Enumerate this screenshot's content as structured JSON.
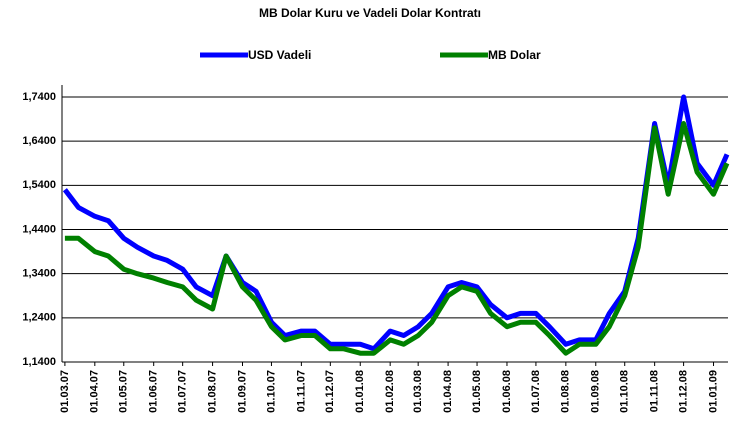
{
  "chart_data": {
    "type": "line",
    "title": "MB Dolar Kuru ve Vadeli Dolar Kontratı",
    "x": [
      "01.03.07",
      "15.03.07",
      "01.04.07",
      "15.04.07",
      "01.05.07",
      "15.05.07",
      "01.06.07",
      "15.06.07",
      "01.07.07",
      "15.07.07",
      "01.08.07",
      "15.08.07",
      "01.09.07",
      "15.09.07",
      "01.10.07",
      "15.10.07",
      "01.11.07",
      "15.11.07",
      "01.12.07",
      "15.12.07",
      "01.01.08",
      "15.01.08",
      "01.02.08",
      "15.02.08",
      "01.03.08",
      "15.03.08",
      "01.04.08",
      "15.04.08",
      "01.05.08",
      "15.05.08",
      "01.06.08",
      "15.06.08",
      "01.07.08",
      "15.07.08",
      "01.08.08",
      "15.08.08",
      "01.09.08",
      "15.09.08",
      "01.10.08",
      "15.10.08",
      "01.11.08",
      "15.11.08",
      "01.12.08",
      "15.12.08",
      "01.01.09",
      "15.01.09"
    ],
    "series": [
      {
        "name": "USD Vadeli",
        "color": "#0000ff",
        "values": [
          1.53,
          1.49,
          1.47,
          1.46,
          1.42,
          1.4,
          1.38,
          1.37,
          1.35,
          1.31,
          1.29,
          1.38,
          1.32,
          1.3,
          1.23,
          1.2,
          1.21,
          1.21,
          1.18,
          1.18,
          1.18,
          1.17,
          1.21,
          1.2,
          1.22,
          1.25,
          1.31,
          1.32,
          1.31,
          1.27,
          1.24,
          1.25,
          1.25,
          1.22,
          1.18,
          1.19,
          1.19,
          1.25,
          1.3,
          1.42,
          1.68,
          1.54,
          1.74,
          1.59,
          1.54,
          1.61
        ]
      },
      {
        "name": "MB Dolar",
        "color": "#008000",
        "values": [
          1.42,
          1.42,
          1.39,
          1.38,
          1.35,
          1.34,
          1.33,
          1.32,
          1.31,
          1.28,
          1.26,
          1.38,
          1.31,
          1.28,
          1.22,
          1.19,
          1.2,
          1.2,
          1.17,
          1.17,
          1.16,
          1.16,
          1.19,
          1.18,
          1.2,
          1.23,
          1.29,
          1.31,
          1.3,
          1.25,
          1.22,
          1.23,
          1.23,
          1.2,
          1.16,
          1.18,
          1.18,
          1.22,
          1.29,
          1.4,
          1.67,
          1.52,
          1.68,
          1.57,
          1.52,
          1.59
        ]
      }
    ],
    "xlim": [
      "26.02.07",
      "16.01.09"
    ],
    "xticks": [
      "01.03.07",
      "01.04.07",
      "01.05.07",
      "01.06.07",
      "01.07.07",
      "01.08.07",
      "01.09.07",
      "01.10.07",
      "01.11.07",
      "01.12.07",
      "01.01.08",
      "01.02.08",
      "01.03.08",
      "01.04.08",
      "01.05.08",
      "01.06.08",
      "01.07.08",
      "01.08.08",
      "01.09.08",
      "01.10.08",
      "01.11.08",
      "01.12.08",
      "01.01.09"
    ],
    "ylim": [
      1.14,
      1.74
    ],
    "yticks": [
      {
        "value": 1.14,
        "label": "1,1400"
      },
      {
        "value": 1.24,
        "label": "1,2400"
      },
      {
        "value": 1.34,
        "label": "1,3400"
      },
      {
        "value": 1.44,
        "label": "1,4400"
      },
      {
        "value": 1.54,
        "label": "1,5400"
      },
      {
        "value": 1.64,
        "label": "1,6400"
      },
      {
        "value": 1.74,
        "label": "1,7400"
      }
    ],
    "grid": true,
    "legend": "top"
  }
}
